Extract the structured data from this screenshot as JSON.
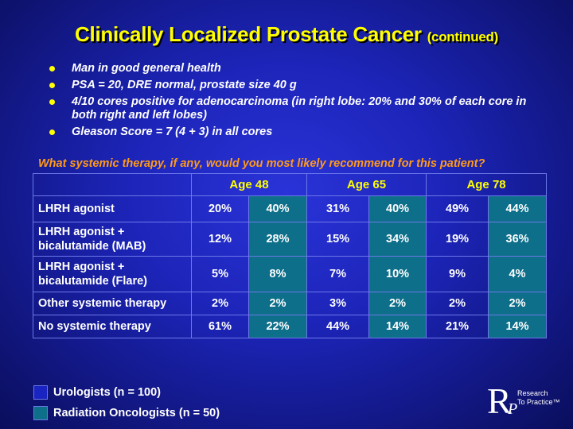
{
  "slide": {
    "title": "Clinically Localized Prostate Cancer",
    "title_suffix": "(continued)",
    "bullets": [
      "Man in good general health",
      "PSA = 20, DRE normal, prostate size 40 g",
      "4/10 cores positive for adenocarcinoma (in right lobe: 20% and 30% of each core in both right and left lobes)",
      "Gleason Score = 7 (4 + 3) in all cores"
    ],
    "question": "What systemic therapy, if any, would you most likely recommend for this patient?"
  },
  "table": {
    "age_headers": [
      "Age 48",
      "Age 65",
      "Age 78"
    ],
    "rows": [
      {
        "label": "LHRH agonist",
        "values": [
          "20%",
          "40%",
          "31%",
          "40%",
          "49%",
          "44%"
        ]
      },
      {
        "label": "LHRH agonist + bicalutamide (MAB)",
        "values": [
          "12%",
          "28%",
          "15%",
          "34%",
          "19%",
          "36%"
        ]
      },
      {
        "label": "LHRH agonist + bicalutamide (Flare)",
        "values": [
          "5%",
          "8%",
          "7%",
          "10%",
          "9%",
          "4%"
        ]
      },
      {
        "label": "Other systemic therapy",
        "values": [
          "2%",
          "2%",
          "3%",
          "2%",
          "2%",
          "2%"
        ]
      },
      {
        "label": "No systemic therapy",
        "values": [
          "61%",
          "22%",
          "44%",
          "14%",
          "21%",
          "14%"
        ]
      }
    ]
  },
  "legend": {
    "urologists": "Urologists  (n = 100)",
    "oncologists": "Radiation Oncologists  (n = 50)"
  },
  "logo": {
    "letter_r": "R",
    "letter_p": "P",
    "line1": "Research",
    "line2": "To Practice™"
  },
  "colors": {
    "title": "#ffff00",
    "question": "#ff9a1a",
    "oncologist_cell": "#0e6f8a",
    "urologist_cell": "#1a24c0"
  }
}
